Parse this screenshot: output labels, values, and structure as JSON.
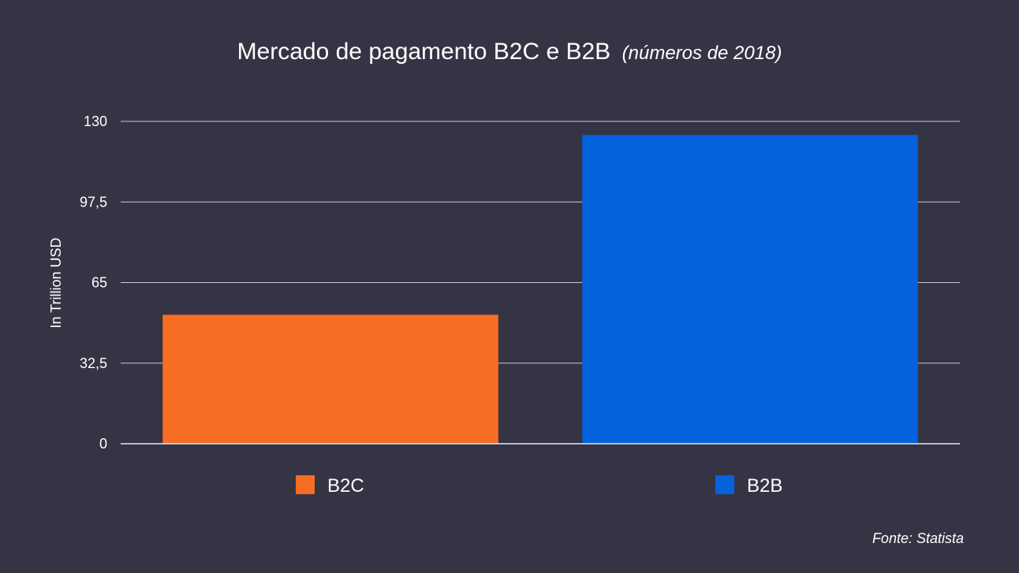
{
  "chart_data": {
    "type": "bar",
    "title": "Mercado de pagamento B2C e B2B",
    "subtitle": "(números de 2018)",
    "xlabel": "",
    "ylabel": "In Trillion USD",
    "categories": [
      "B2C",
      "B2B"
    ],
    "values": [
      52,
      124.5
    ],
    "colors": [
      "#f76d23",
      "#0562dd"
    ],
    "ylim": [
      0,
      130
    ],
    "yticks": [
      0,
      32.5,
      65,
      97.5,
      130
    ],
    "ytick_labels": [
      "0",
      "32,5",
      "65",
      "97,5",
      "130"
    ],
    "grid": true,
    "legend": {
      "position": "bottom",
      "entries": [
        {
          "label": "B2C",
          "color": "#f76d23"
        },
        {
          "label": "B2B",
          "color": "#0562dd"
        }
      ]
    }
  },
  "source": "Fonte: Statista",
  "colors": {
    "background": "#353445",
    "text": "#ffffff",
    "grid": "#c9c9d1"
  }
}
